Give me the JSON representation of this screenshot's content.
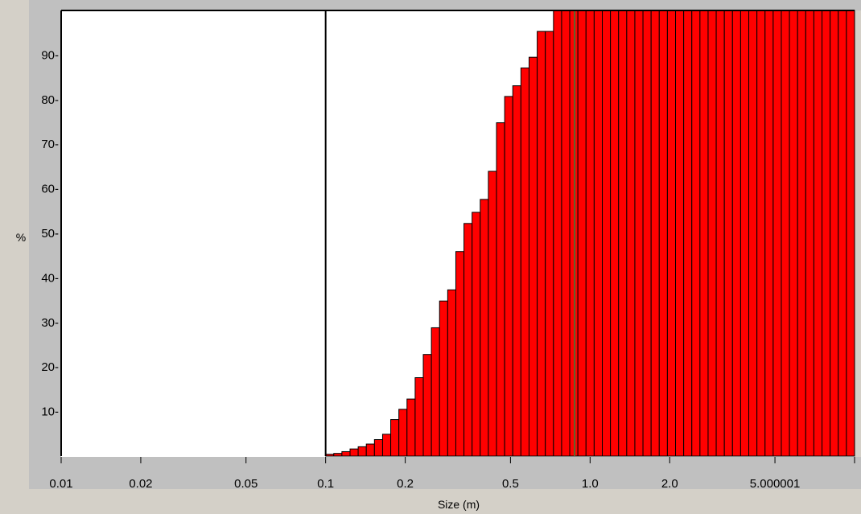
{
  "chart_data": {
    "type": "bar",
    "xlabel": "Size (m)",
    "ylabel": "%",
    "x_scale": "log",
    "xlim": [
      0.01,
      10
    ],
    "ylim": [
      0,
      100
    ],
    "x_ticks": [
      {
        "value": 0.01,
        "label": "0.01"
      },
      {
        "value": 0.02,
        "label": "0.02"
      },
      {
        "value": 0.05,
        "label": "0.05"
      },
      {
        "value": 0.1,
        "label": "0.1"
      },
      {
        "value": 0.2,
        "label": "0.2"
      },
      {
        "value": 0.5,
        "label": "0.5"
      },
      {
        "value": 1.0,
        "label": "1.0"
      },
      {
        "value": 2.0,
        "label": "2.0"
      },
      {
        "value": 5.0,
        "label": "5.000001"
      }
    ],
    "y_ticks": [
      {
        "value": 10,
        "label": "10-"
      },
      {
        "value": 20,
        "label": "20-"
      },
      {
        "value": 30,
        "label": "30-"
      },
      {
        "value": 40,
        "label": "40-"
      },
      {
        "value": 50,
        "label": "50-"
      },
      {
        "value": 60,
        "label": "60-"
      },
      {
        "value": 70,
        "label": "70-"
      },
      {
        "value": 80,
        "label": "80-"
      },
      {
        "value": 90,
        "label": "90-"
      }
    ],
    "bars": {
      "x_start": 0.1,
      "x_end": 10,
      "count": 65,
      "values": [
        0.4,
        0.6,
        1.0,
        1.6,
        2.1,
        2.7,
        3.7,
        4.9,
        8.2,
        10.5,
        12.8,
        17.6,
        22.8,
        28.8,
        34.8,
        37.3,
        45.9,
        52.2,
        54.7,
        57.6,
        63.9,
        74.8,
        80.7,
        83.1,
        87.1,
        89.5,
        95.3,
        95.3,
        100,
        100,
        100,
        100,
        100,
        100,
        100,
        100,
        100,
        100,
        100,
        100,
        100,
        100,
        100,
        100,
        100,
        100,
        100,
        100,
        100,
        100,
        100,
        100,
        100,
        100,
        100,
        100,
        100,
        100,
        100,
        100,
        100,
        100,
        100,
        100,
        100
      ],
      "color": "#ff0000"
    },
    "markers": [
      {
        "x": 0.1,
        "color": "#000000"
      },
      {
        "x": 0.874,
        "color": "#556b2f"
      }
    ],
    "plot_background": "#ffffff",
    "frame_color": "#c0c0c0"
  }
}
